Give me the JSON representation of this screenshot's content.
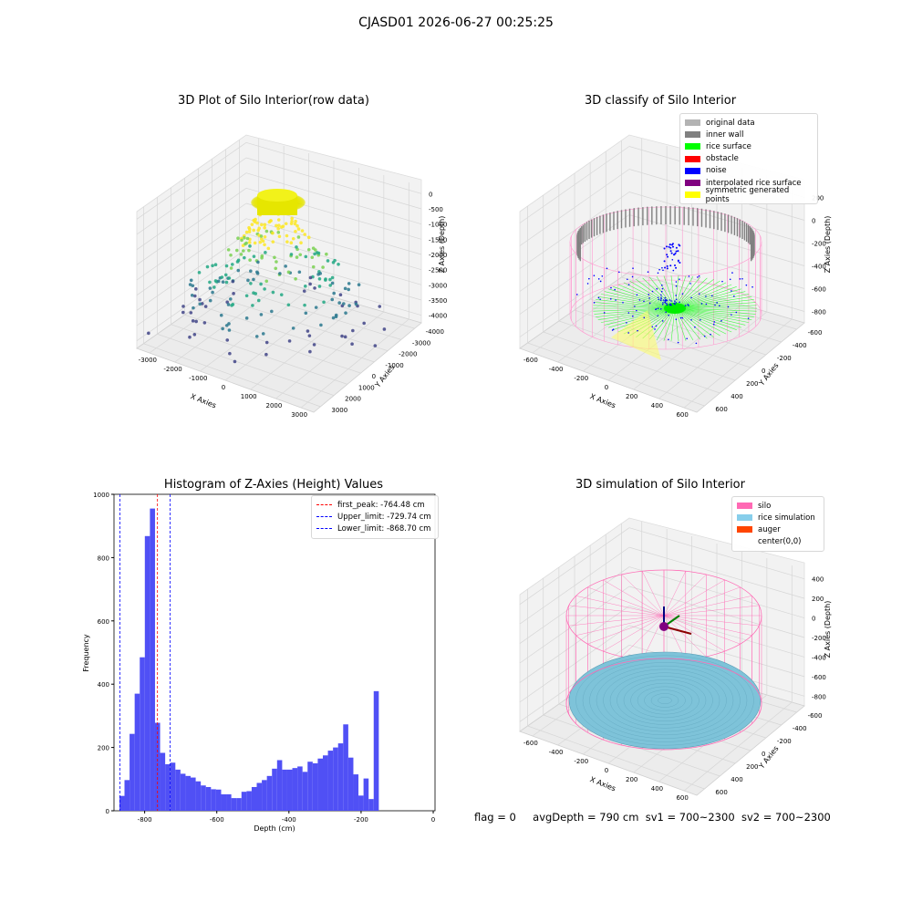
{
  "suptitle": "CJASD01 2026-06-27 00:25:25",
  "footer": {
    "flag": "flag = 0",
    "avg": "avgDepth = 790 cm",
    "sv1": "sv1 = 700~2300",
    "sv2": "sv2 = 700~2300"
  },
  "chart_data": [
    {
      "type": "scatter",
      "title": "3D Plot of Silo Interior(row data)",
      "xlabel": "X Axies",
      "ylabel": "Y Axies",
      "zlabel": "Z Axies (Depth)",
      "x_ticks": [
        "-3000",
        "-2000",
        "-1000",
        "0",
        "1000",
        "2000",
        "3000"
      ],
      "y_ticks": [
        "-4000",
        "-3000",
        "-2000",
        "-1000",
        "0",
        "1000",
        "2000",
        "3000"
      ],
      "z_ticks": [
        "0",
        "-500",
        "-1000",
        "-1500",
        "-2000",
        "-2500",
        "-3000",
        "-3500",
        "-4000"
      ],
      "colormap": "viridis",
      "notes_colors": [
        "#fde725",
        "#7ad151",
        "#22a884",
        "#2a788e",
        "#414487"
      ]
    },
    {
      "type": "scatter",
      "title": "3D classify of Silo Interior",
      "xlabel": "X Axies",
      "ylabel": "Y Axies",
      "zlabel": "Z Axies (Depth)",
      "x_ticks": [
        "-600",
        "-400",
        "-200",
        "0",
        "200",
        "400",
        "600"
      ],
      "y_ticks": [
        "-600",
        "-400",
        "-200",
        "0",
        "200",
        "400",
        "600"
      ],
      "z_ticks": [
        "200",
        "0",
        "-200",
        "-400",
        "-600",
        "-800"
      ],
      "legend": [
        {
          "label": "original data",
          "color": "#b3b3b3"
        },
        {
          "label": "inner wall",
          "color": "#808080"
        },
        {
          "label": "rice surface",
          "color": "#00ff00"
        },
        {
          "label": "obstacle",
          "color": "#ff0000"
        },
        {
          "label": "noise",
          "color": "#0000ff"
        },
        {
          "label": "interpolated rice surface",
          "color": "#800080"
        },
        {
          "label": "symmetric generated points",
          "color": "#ffff00"
        }
      ]
    },
    {
      "type": "bar",
      "title": "Histogram of Z-Axies (Height) Values",
      "xlabel": "Depth (cm)",
      "ylabel": "Frequency",
      "xlim": [
        -885,
        5
      ],
      "ylim": [
        0,
        1000
      ],
      "x_ticks": [
        -800,
        -600,
        -400,
        -200,
        0
      ],
      "y_ticks": [
        0,
        200,
        400,
        600,
        800,
        1000
      ],
      "bin_start": -870,
      "bin_width": 14.1,
      "values": [
        47,
        97,
        243,
        370,
        485,
        868,
        955,
        278,
        183,
        147,
        152,
        130,
        117,
        110,
        105,
        93,
        80,
        75,
        68,
        67,
        52,
        52,
        40,
        40,
        60,
        62,
        75,
        88,
        97,
        110,
        133,
        160,
        130,
        130,
        135,
        140,
        123,
        155,
        150,
        165,
        175,
        190,
        200,
        213,
        273,
        168,
        115,
        48,
        102,
        37,
        378
      ],
      "bar_color": "#5050f5",
      "vlines": [
        {
          "label": "first_peak: -764.48 cm",
          "x": -764.48,
          "color": "#ff0000"
        },
        {
          "label": "Upper_limit: -729.74 cm",
          "x": -729.74,
          "color": "#0000ff"
        },
        {
          "label": "Lower_limit: -868.70 cm",
          "x": -868.7,
          "color": "#0000ff"
        }
      ]
    },
    {
      "type": "scatter",
      "title": "3D simulation of Silo Interior",
      "xlabel": "X Axies",
      "ylabel": "Y Axies",
      "zlabel": "Z Axies (Depth)",
      "x_ticks": [
        "-600",
        "-400",
        "-200",
        "0",
        "200",
        "400",
        "600"
      ],
      "y_ticks": [
        "-600",
        "-400",
        "-200",
        "0",
        "200",
        "400",
        "600"
      ],
      "z_ticks": [
        "400",
        "200",
        "0",
        "-200",
        "-400",
        "-600",
        "-800"
      ],
      "legend": [
        {
          "label": "silo",
          "color": "#ff69b4"
        },
        {
          "label": "rice simulation",
          "color": "#87ceeb"
        },
        {
          "label": "auger",
          "color": "#ff4500"
        },
        {
          "label": "center(0,0)",
          "color": ""
        }
      ]
    }
  ]
}
